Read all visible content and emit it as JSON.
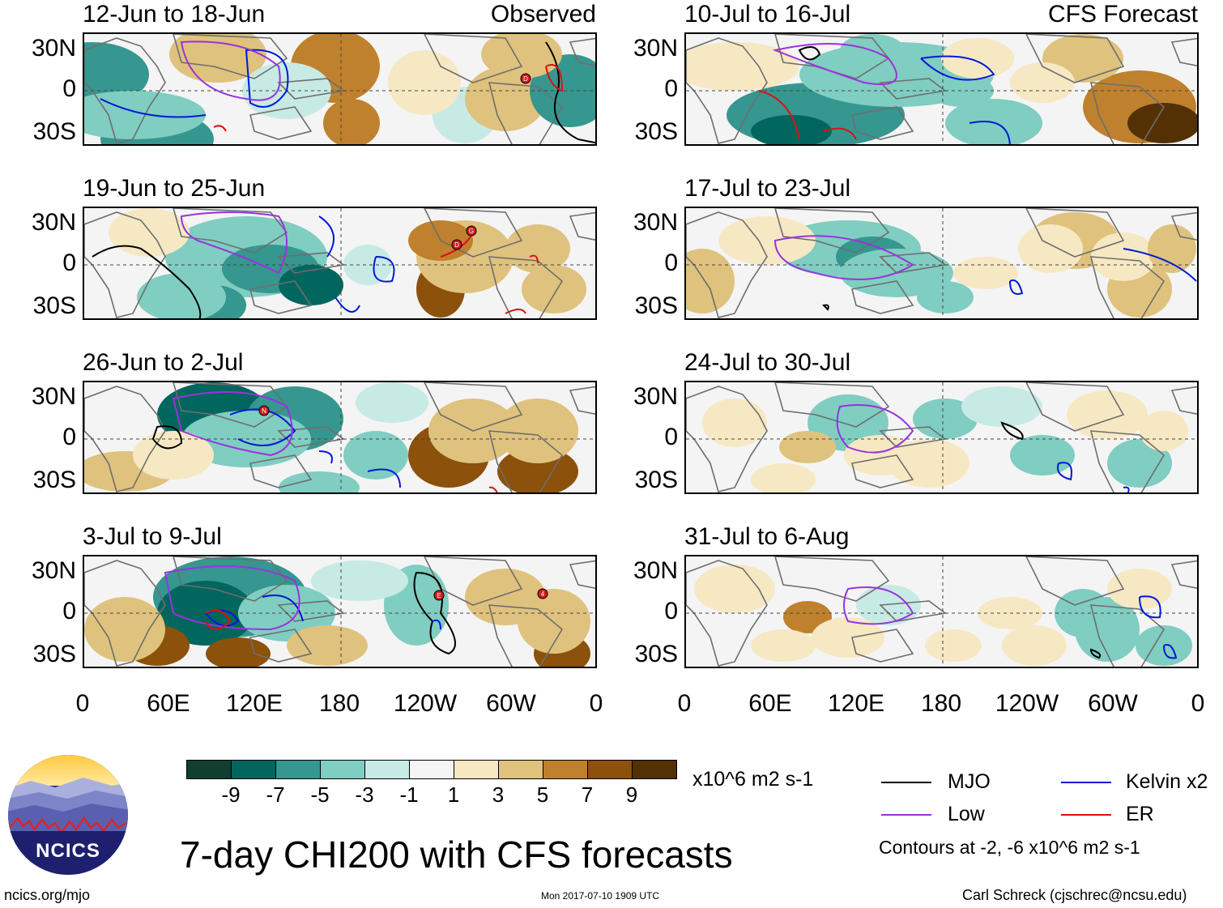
{
  "panels": [
    {
      "title": "12-Jun to 18-Jun",
      "label": "Observed",
      "storms": [
        "D"
      ]
    },
    {
      "title": "19-Jun to 25-Jun",
      "storms": [
        "D",
        "G"
      ]
    },
    {
      "title": "26-Jun to 2-Jul",
      "storms": [
        "N"
      ]
    },
    {
      "title": "3-Jul to 9-Jul",
      "storms": [
        "E",
        "4"
      ]
    },
    {
      "title": "10-Jul to 16-Jul",
      "label": "CFS Forecast"
    },
    {
      "title": "17-Jul to 23-Jul"
    },
    {
      "title": "24-Jul to 30-Jul"
    },
    {
      "title": "31-Jul to 6-Aug"
    }
  ],
  "y_axis": {
    "labels": [
      "30N",
      "0",
      "30S"
    ]
  },
  "x_axis": {
    "labels": [
      "0",
      "60E",
      "120E",
      "180",
      "120W",
      "60W",
      "0"
    ]
  },
  "colorbar": {
    "colors": [
      "#123e32",
      "#01665e",
      "#35978f",
      "#80cdc1",
      "#c7eae5",
      "#f5f5f5",
      "#f6e8c3",
      "#dfc27d",
      "#bf812d",
      "#8c510a",
      "#543005"
    ],
    "labels": [
      "-9",
      "-7",
      "-5",
      "-3",
      "-1",
      "1",
      "3",
      "5",
      "7",
      "9"
    ],
    "units": "x10^6 m2 s-1"
  },
  "legend": {
    "items": [
      {
        "name": "MJO",
        "color": "#000000"
      },
      {
        "name": "Kelvin x2",
        "color": "#0019d9"
      },
      {
        "name": "Low",
        "color": "#9933dd"
      },
      {
        "name": "ER",
        "color": "#dd1111"
      }
    ],
    "note": "Contours at -2, -6 x10^6 m2 s-1"
  },
  "logo": {
    "text": "NCICS"
  },
  "title": "7-day CHI200 with CFS forecasts",
  "footer": {
    "url": "ncics.org/mjo",
    "timestamp": "Mon 2017-07-10 1909 UTC",
    "credit": "Carl Schreck (cjschrec@ncsu.edu)"
  }
}
